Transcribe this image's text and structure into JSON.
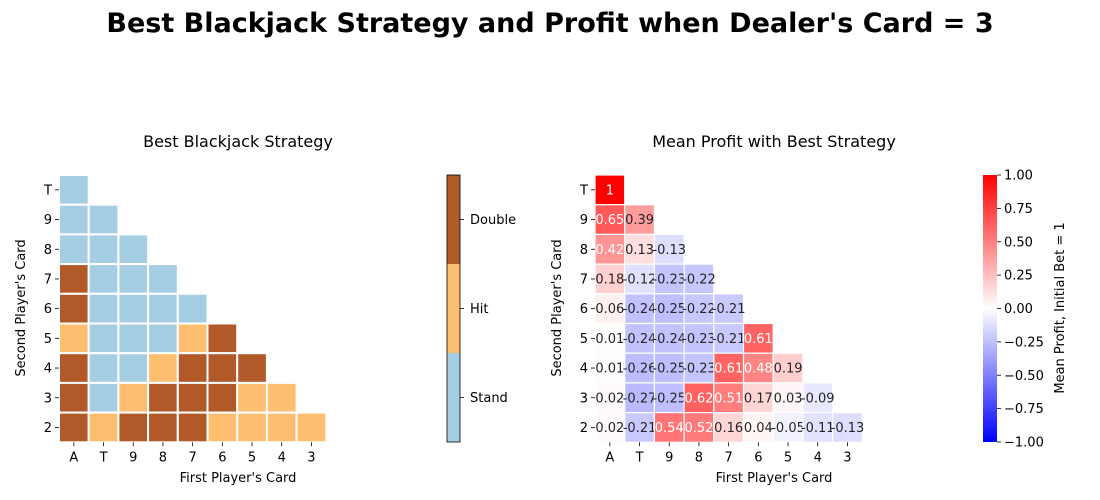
{
  "figure_title": "Best Blackjack Strategy and Profit when Dealer's Card = 3",
  "chart_data": [
    {
      "type": "heatmap",
      "title": "Best Blackjack Strategy",
      "xlabel": "First Player's Card",
      "ylabel": "Second Player's Card",
      "x_categories": [
        "A",
        "T",
        "9",
        "8",
        "7",
        "6",
        "5",
        "4",
        "3"
      ],
      "y_categories": [
        "T",
        "9",
        "8",
        "7",
        "6",
        "5",
        "4",
        "3",
        "2"
      ],
      "colorbar": {
        "labels": [
          "Double",
          "Hit",
          "Stand"
        ],
        "colors": {
          "Stand": "#a6cee3",
          "Hit": "#fdbf6f",
          "Double": "#b15928"
        }
      },
      "cells": [
        [
          "Stand"
        ],
        [
          "Stand",
          "Stand"
        ],
        [
          "Stand",
          "Stand",
          "Stand"
        ],
        [
          "Double",
          "Stand",
          "Stand",
          "Stand"
        ],
        [
          "Double",
          "Stand",
          "Stand",
          "Stand",
          "Stand"
        ],
        [
          "Hit",
          "Stand",
          "Stand",
          "Stand",
          "Hit",
          "Double"
        ],
        [
          "Double",
          "Stand",
          "Stand",
          "Hit",
          "Double",
          "Double",
          "Double"
        ],
        [
          "Double",
          "Stand",
          "Hit",
          "Double",
          "Double",
          "Double",
          "Hit",
          "Hit"
        ],
        [
          "Double",
          "Hit",
          "Double",
          "Double",
          "Double",
          "Hit",
          "Hit",
          "Hit",
          "Hit"
        ]
      ]
    },
    {
      "type": "heatmap",
      "title": "Mean Profit with Best Strategy",
      "xlabel": "First Player's Card",
      "ylabel": "Second Player's Card",
      "x_categories": [
        "A",
        "T",
        "9",
        "8",
        "7",
        "6",
        "5",
        "4",
        "3"
      ],
      "y_categories": [
        "T",
        "9",
        "8",
        "7",
        "6",
        "5",
        "4",
        "3",
        "2"
      ],
      "colorbar": {
        "label": "Mean Profit, Initial Bet = 1",
        "range": [
          -1,
          1
        ],
        "ticks": [
          "1.00",
          "0.75",
          "0.50",
          "0.25",
          "0.00",
          "−0.25",
          "−0.50",
          "−0.75",
          "−1.00"
        ],
        "colormap": "bwr"
      },
      "values": [
        [
          1
        ],
        [
          0.65,
          0.39
        ],
        [
          0.42,
          0.13,
          -0.13
        ],
        [
          0.18,
          -0.12,
          -0.23,
          -0.22
        ],
        [
          0.06,
          -0.24,
          -0.25,
          -0.22,
          -0.21
        ],
        [
          0.01,
          -0.24,
          -0.24,
          -0.23,
          -0.21,
          0.61
        ],
        [
          0.01,
          -0.26,
          -0.25,
          -0.23,
          0.61,
          0.48,
          0.19
        ],
        [
          0.02,
          -0.27,
          -0.25,
          0.62,
          0.51,
          0.17,
          0.03,
          -0.09
        ],
        [
          0.02,
          -0.21,
          0.54,
          0.52,
          0.16,
          0.04,
          -0.05,
          -0.11,
          -0.13
        ]
      ]
    }
  ]
}
